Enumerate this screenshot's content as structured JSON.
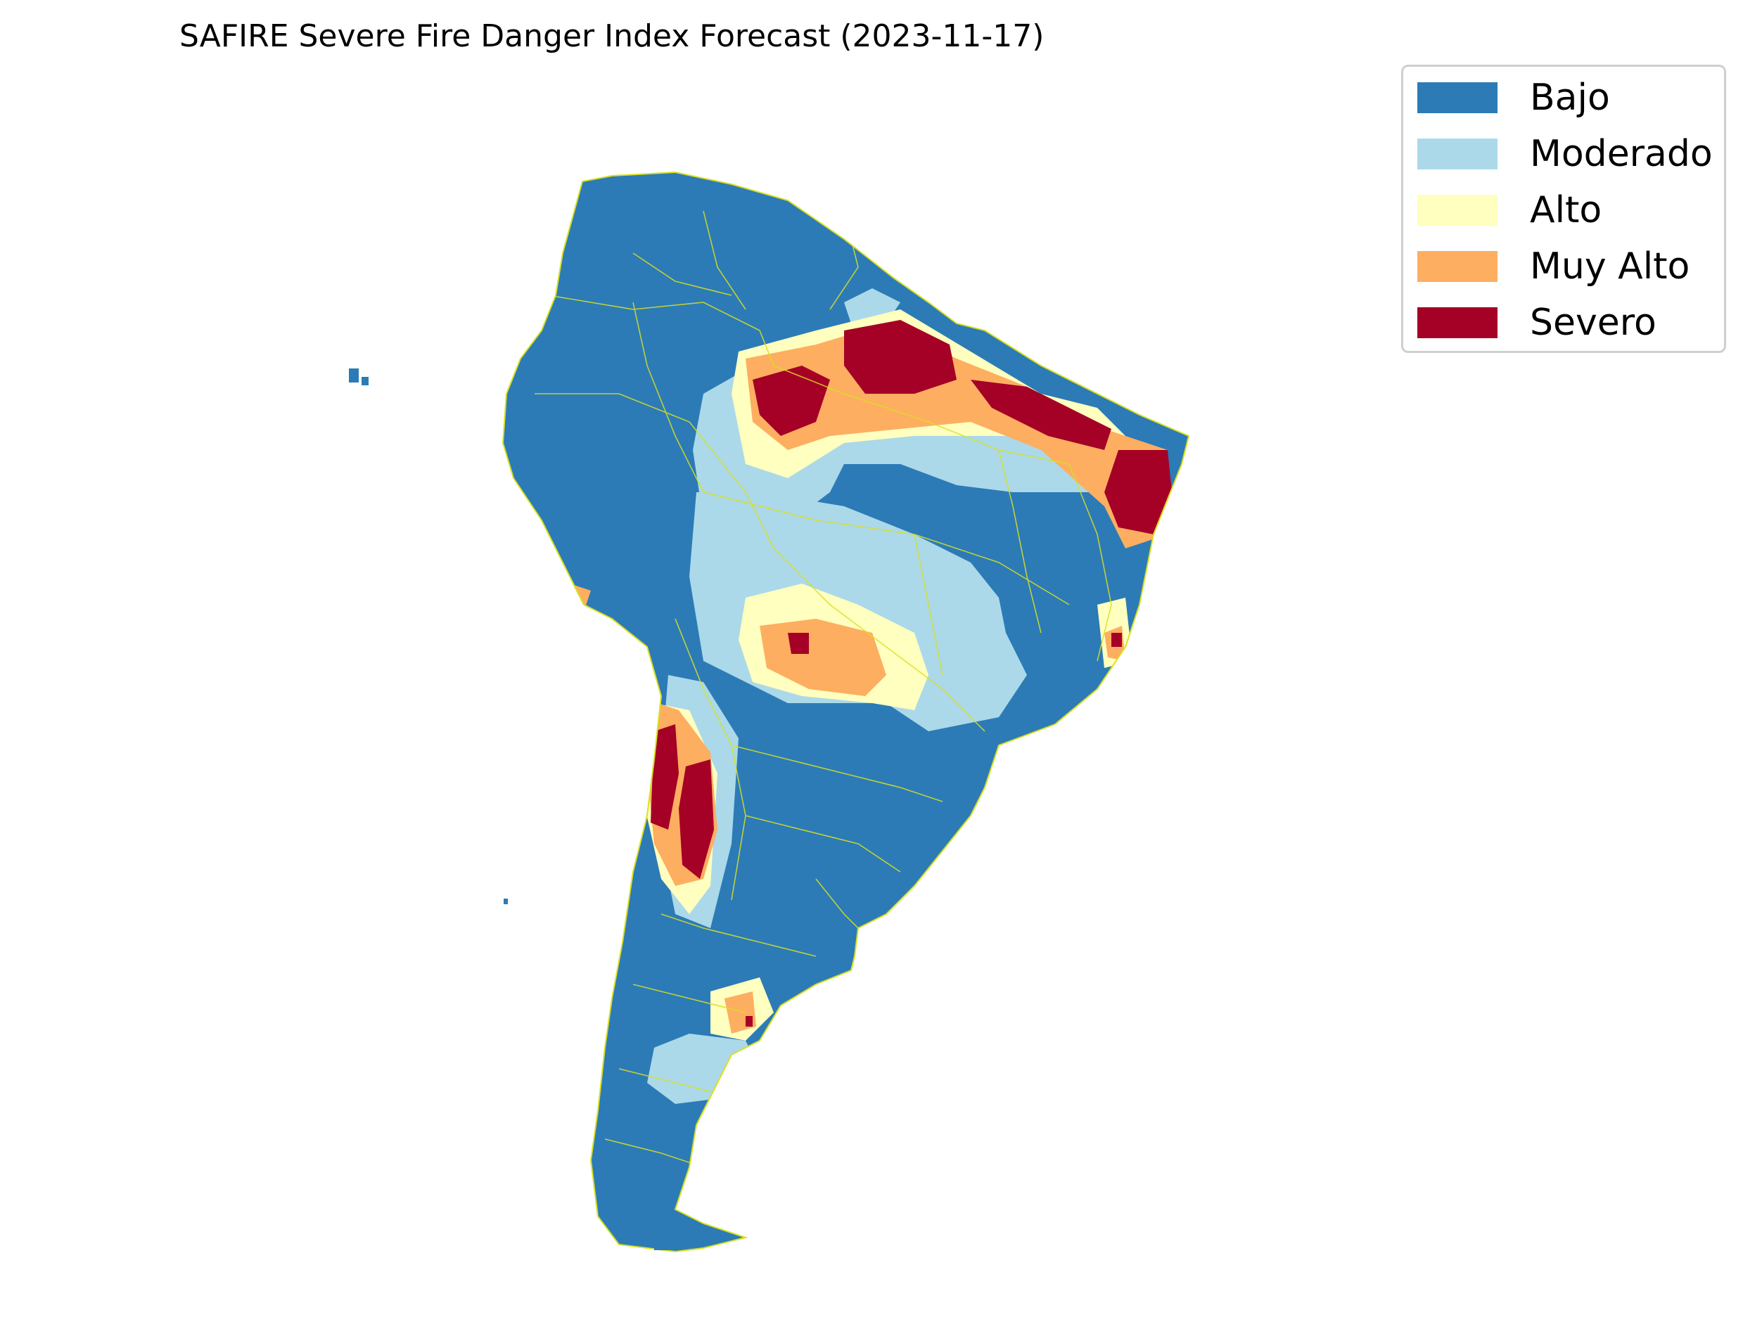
{
  "title": "SAFIRE Severe Fire Danger Index Forecast (2023-11-17)",
  "legend": {
    "items": [
      {
        "label": "Bajo",
        "color": "#2c7bb6"
      },
      {
        "label": "Moderado",
        "color": "#abd9e9"
      },
      {
        "label": "Alto",
        "color": "#ffffbf"
      },
      {
        "label": "Muy Alto",
        "color": "#fdae61"
      },
      {
        "label": "Severo",
        "color": "#a50026"
      }
    ]
  },
  "map": {
    "region": "South America",
    "border_color": "#d9e021",
    "categories": [
      "Bajo",
      "Moderado",
      "Alto",
      "Muy Alto",
      "Severo"
    ]
  }
}
